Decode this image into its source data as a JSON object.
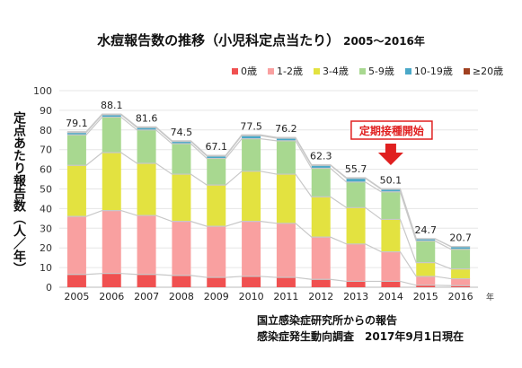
{
  "title": {
    "main": "水痘報告数の推移（小児科定点当たり）",
    "range": "2005～2016年"
  },
  "source_lines": [
    "国立感染症研究所からの報告",
    "感染症発生動向調査　2017年9月1日現在"
  ],
  "chart_data": {
    "type": "bar",
    "stacked": true,
    "ylabel": "定点あたり報告数（人／年）",
    "xlabel": "年",
    "ylim": [
      0,
      100
    ],
    "yticks": [
      0,
      10,
      20,
      30,
      40,
      50,
      60,
      70,
      80,
      90,
      100
    ],
    "grid": true,
    "legend_position": "top-right",
    "categories": [
      "2005",
      "2006",
      "2007",
      "2008",
      "2009",
      "2010",
      "2011",
      "2012",
      "2013",
      "2014",
      "2015",
      "2016"
    ],
    "totals": [
      79.1,
      88.1,
      81.6,
      74.5,
      67.1,
      77.5,
      76.2,
      62.3,
      55.7,
      50.1,
      24.7,
      20.7
    ],
    "series": [
      {
        "name": "0歳",
        "color": "#f05050",
        "values": [
          6.5,
          7.0,
          6.5,
          6.0,
          5.0,
          5.5,
          5.0,
          4.0,
          3.0,
          3.0,
          1.0,
          0.8
        ]
      },
      {
        "name": "1-2歳",
        "color": "#f9a0a0",
        "values": [
          29.5,
          32.0,
          30.0,
          27.5,
          26.0,
          28.0,
          27.5,
          21.5,
          19.0,
          15.0,
          4.5,
          3.5
        ]
      },
      {
        "name": "3-4歳",
        "color": "#e3e240",
        "values": [
          26.0,
          29.5,
          26.5,
          24.0,
          21.0,
          25.5,
          25.0,
          20.5,
          18.5,
          16.5,
          7.0,
          5.0
        ]
      },
      {
        "name": "5-9歳",
        "color": "#a8d890",
        "values": [
          15.5,
          18.0,
          17.0,
          15.5,
          13.5,
          16.5,
          17.0,
          14.5,
          13.0,
          14.0,
          11.0,
          10.0
        ]
      },
      {
        "name": "10-19歳",
        "color": "#4aa8c8",
        "values": [
          1.2,
          1.2,
          1.2,
          1.2,
          1.2,
          1.6,
          1.3,
          1.5,
          1.9,
          1.3,
          1.1,
          1.3
        ]
      },
      {
        "name": "≥20歳",
        "color": "#a04020",
        "values": [
          0.4,
          0.4,
          0.4,
          0.3,
          0.4,
          0.4,
          0.4,
          0.3,
          0.3,
          0.3,
          0.1,
          0.1
        ]
      }
    ],
    "annotation": {
      "text": "定期接種開始",
      "category": "2014",
      "color": "#e02020"
    }
  }
}
